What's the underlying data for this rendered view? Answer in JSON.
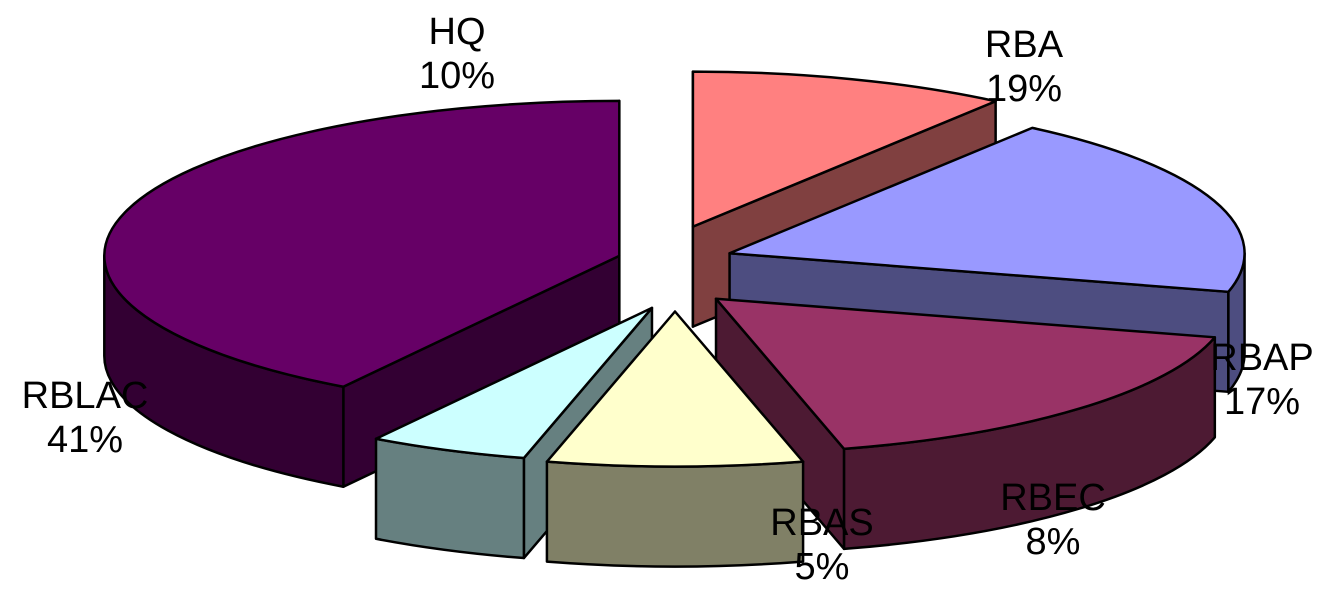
{
  "chart_data": {
    "type": "pie",
    "style": "3d-exploded",
    "legend": "none",
    "slices": [
      {
        "label": "HQ",
        "value": 10,
        "display": "10%",
        "top_color": "#FF8080",
        "side_color": "#804040"
      },
      {
        "label": "RBA",
        "value": 19,
        "display": "19%",
        "top_color": "#9999FF",
        "side_color": "#4D4D80"
      },
      {
        "label": "RBAP",
        "value": 17,
        "display": "17%",
        "top_color": "#993366",
        "side_color": "#4D1A33"
      },
      {
        "label": "RBEC",
        "value": 8,
        "display": "8%",
        "top_color": "#FFFFCC",
        "side_color": "#808066"
      },
      {
        "label": "RBAS",
        "value": 5,
        "display": "5%",
        "top_color": "#CCFFFF",
        "side_color": "#668080"
      },
      {
        "label": "RBLAC",
        "value": 41,
        "display": "41%",
        "top_color": "#660066",
        "side_color": "#330033"
      }
    ]
  }
}
